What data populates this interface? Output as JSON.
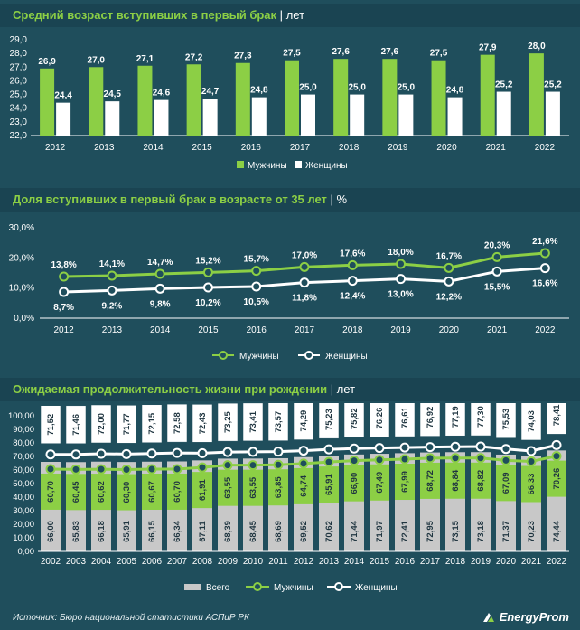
{
  "chart1": {
    "title": "Средний возраст вступивших в первый брак",
    "sep": "|",
    "unit": "лет",
    "chart_data": {
      "type": "bar",
      "categories": [
        "2012",
        "2013",
        "2014",
        "2015",
        "2016",
        "2017",
        "2018",
        "2019",
        "2020",
        "2021",
        "2022"
      ],
      "series": [
        {
          "name": "Мужчины",
          "values": [
            26.9,
            27.0,
            27.1,
            27.2,
            27.3,
            27.5,
            27.6,
            27.6,
            27.5,
            27.9,
            28.0
          ],
          "labels": [
            "26,9",
            "27,0",
            "27,1",
            "27,2",
            "27,3",
            "27,5",
            "27,6",
            "27,6",
            "27,5",
            "27,9",
            "28,0"
          ],
          "color": "#8ccf45"
        },
        {
          "name": "Женщины",
          "values": [
            24.4,
            24.5,
            24.6,
            24.7,
            24.8,
            25.0,
            25.0,
            25.0,
            24.8,
            25.2,
            25.2
          ],
          "labels": [
            "24,4",
            "24,5",
            "24,6",
            "24,7",
            "24,8",
            "25,0",
            "25,0",
            "25,0",
            "24,8",
            "25,2",
            "25,2"
          ],
          "color": "#ffffff"
        }
      ],
      "ylim": [
        22.0,
        29.0
      ],
      "yticks": [
        "22,0",
        "23,0",
        "24,0",
        "25,0",
        "26,0",
        "27,0",
        "28,0",
        "29,0"
      ],
      "legend": "bottom-center"
    }
  },
  "chart2": {
    "title": "Доля вступивших в первый брак в возрасте от 35 лет",
    "sep": "|",
    "unit": "%",
    "chart_data": {
      "type": "line",
      "categories": [
        "2012",
        "2013",
        "2014",
        "2015",
        "2016",
        "2017",
        "2018",
        "2019",
        "2020",
        "2021",
        "2022"
      ],
      "series": [
        {
          "name": "Мужчины",
          "values": [
            13.8,
            14.1,
            14.7,
            15.2,
            15.7,
            17.0,
            17.6,
            18.0,
            16.7,
            20.3,
            21.6
          ],
          "labels": [
            "13,8%",
            "14,1%",
            "14,7%",
            "15,2%",
            "15,7%",
            "17,0%",
            "17,6%",
            "18,0%",
            "16,7%",
            "20,3%",
            "21,6%"
          ],
          "color": "#8ccf45"
        },
        {
          "name": "Женщины",
          "values": [
            8.7,
            9.2,
            9.8,
            10.2,
            10.5,
            11.8,
            12.4,
            13.0,
            12.2,
            15.5,
            16.6
          ],
          "labels": [
            "8,7%",
            "9,2%",
            "9,8%",
            "10,2%",
            "10,5%",
            "11,8%",
            "12,4%",
            "13,0%",
            "12,2%",
            "15,5%",
            "16,6%"
          ],
          "color": "#ffffff"
        }
      ],
      "ylim": [
        0,
        30
      ],
      "yticks": [
        "0,0%",
        "10,0%",
        "20,0%",
        "30,0%"
      ],
      "legend": "bottom-center"
    }
  },
  "chart3": {
    "title": "Ожидаемая продолжительность жизни при рождении",
    "sep": "|",
    "unit": "лет",
    "chart_data": {
      "type": "bar",
      "categories": [
        "2002",
        "2003",
        "2004",
        "2005",
        "2006",
        "2007",
        "2008",
        "2009",
        "2010",
        "2011",
        "2012",
        "2013",
        "2014",
        "2015",
        "2016",
        "2017",
        "2018",
        "2019",
        "2020",
        "2021",
        "2022"
      ],
      "series": [
        {
          "name": "Всего",
          "values": [
            66.0,
            65.83,
            66.18,
            65.91,
            66.15,
            66.34,
            67.11,
            68.39,
            68.45,
            68.69,
            69.52,
            70.62,
            71.44,
            71.97,
            72.41,
            72.95,
            73.15,
            73.18,
            71.37,
            70.23,
            74.44
          ],
          "labels": [
            "66,00",
            "65,83",
            "66,18",
            "65,91",
            "66,15",
            "66,34",
            "67,11",
            "68,39",
            "68,45",
            "68,69",
            "69,52",
            "70,62",
            "71,44",
            "71,97",
            "72,41",
            "72,95",
            "73,15",
            "73,18",
            "71,37",
            "70,23",
            "74,44"
          ],
          "color": "#c8c8c8"
        },
        {
          "name": "Мужчины",
          "values": [
            60.7,
            60.45,
            60.62,
            60.3,
            60.67,
            60.7,
            61.91,
            63.55,
            63.55,
            63.85,
            64.74,
            65.91,
            66.9,
            67.49,
            67.99,
            68.72,
            68.84,
            68.82,
            67.09,
            66.33,
            70.26
          ],
          "labels": [
            "60,70",
            "60,45",
            "60,62",
            "60,30",
            "60,67",
            "60,70",
            "61,91",
            "63,55",
            "63,55",
            "63,85",
            "64,74",
            "65,91",
            "66,90",
            "67,49",
            "67,99",
            "68,72",
            "68,84",
            "68,82",
            "67,09",
            "66,33",
            "70,26"
          ],
          "color": "#8ccf45"
        },
        {
          "name": "Женщины",
          "values": [
            71.52,
            71.46,
            72.0,
            71.77,
            72.15,
            72.58,
            72.43,
            73.25,
            73.41,
            73.57,
            74.29,
            75.23,
            75.82,
            76.26,
            76.61,
            76.92,
            77.19,
            77.3,
            75.53,
            74.03,
            78.41
          ],
          "labels": [
            "71,52",
            "71,46",
            "72,00",
            "71,77",
            "72,15",
            "72,58",
            "72,43",
            "73,25",
            "73,41",
            "73,57",
            "74,29",
            "75,23",
            "75,82",
            "76,26",
            "76,61",
            "76,92",
            "77,19",
            "77,30",
            "75,53",
            "74,03",
            "78,41"
          ],
          "color": "#ffffff"
        }
      ],
      "ylim": [
        0,
        100
      ],
      "yticks": [
        "0,00",
        "10,00",
        "20,00",
        "30,00",
        "40,00",
        "50,00",
        "60,00",
        "70,00",
        "80,00",
        "90,00",
        "100,00"
      ],
      "legend": "bottom-center"
    }
  },
  "footer": {
    "source": "Источник: Бюро национальной статистики АСПиР РК",
    "logo": "EnergyProm"
  }
}
